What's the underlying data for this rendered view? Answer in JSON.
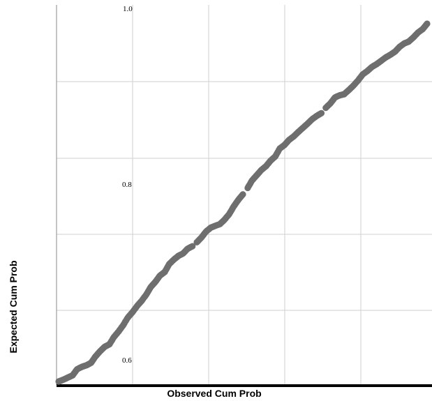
{
  "chart_data": {
    "type": "scatter",
    "title": "",
    "xlabel": "Observed Cum Prob",
    "ylabel": "Expected Cum Prob",
    "y_tick_labels": [
      "1.0",
      "0.8",
      "0.6"
    ],
    "grid": true,
    "legend": "none",
    "marker_color": "#6e6e6e",
    "series": [
      {
        "points": [
          [
            0.0,
            0.0
          ],
          [
            0.013,
            0.005
          ],
          [
            0.025,
            0.011
          ],
          [
            0.038,
            0.017
          ],
          [
            0.05,
            0.034
          ],
          [
            0.063,
            0.041
          ],
          [
            0.075,
            0.045
          ],
          [
            0.088,
            0.052
          ],
          [
            0.1,
            0.07
          ],
          [
            0.113,
            0.085
          ],
          [
            0.125,
            0.097
          ],
          [
            0.138,
            0.104
          ],
          [
            0.15,
            0.124
          ],
          [
            0.163,
            0.14
          ],
          [
            0.175,
            0.157
          ],
          [
            0.188,
            0.179
          ],
          [
            0.2,
            0.193
          ],
          [
            0.213,
            0.211
          ],
          [
            0.225,
            0.225
          ],
          [
            0.238,
            0.243
          ],
          [
            0.25,
            0.264
          ],
          [
            0.263,
            0.279
          ],
          [
            0.275,
            0.296
          ],
          [
            0.288,
            0.306
          ],
          [
            0.3,
            0.328
          ],
          [
            0.313,
            0.341
          ],
          [
            0.325,
            0.351
          ],
          [
            0.338,
            0.358
          ],
          [
            0.35,
            0.371
          ],
          [
            0.363,
            0.378
          ],
          [
            0.375,
            0.389
          ],
          [
            0.388,
            0.403
          ],
          [
            0.4,
            0.419
          ],
          [
            0.413,
            0.43
          ],
          [
            0.425,
            0.435
          ],
          [
            0.438,
            0.44
          ],
          [
            0.45,
            0.452
          ],
          [
            0.463,
            0.468
          ],
          [
            0.475,
            0.489
          ],
          [
            0.488,
            0.508
          ],
          [
            0.5,
            0.523
          ],
          [
            0.513,
            0.541
          ],
          [
            0.525,
            0.562
          ],
          [
            0.538,
            0.577
          ],
          [
            0.55,
            0.591
          ],
          [
            0.563,
            0.602
          ],
          [
            0.575,
            0.617
          ],
          [
            0.588,
            0.629
          ],
          [
            0.6,
            0.651
          ],
          [
            0.613,
            0.661
          ],
          [
            0.625,
            0.675
          ],
          [
            0.638,
            0.685
          ],
          [
            0.65,
            0.697
          ],
          [
            0.663,
            0.709
          ],
          [
            0.675,
            0.72
          ],
          [
            0.688,
            0.733
          ],
          [
            0.7,
            0.742
          ],
          [
            0.713,
            0.75
          ],
          [
            0.725,
            0.765
          ],
          [
            0.738,
            0.778
          ],
          [
            0.75,
            0.794
          ],
          [
            0.763,
            0.8
          ],
          [
            0.775,
            0.803
          ],
          [
            0.788,
            0.815
          ],
          [
            0.8,
            0.827
          ],
          [
            0.813,
            0.842
          ],
          [
            0.825,
            0.858
          ],
          [
            0.838,
            0.868
          ],
          [
            0.85,
            0.879
          ],
          [
            0.863,
            0.887
          ],
          [
            0.875,
            0.896
          ],
          [
            0.888,
            0.906
          ],
          [
            0.9,
            0.913
          ],
          [
            0.913,
            0.922
          ],
          [
            0.925,
            0.935
          ],
          [
            0.938,
            0.945
          ],
          [
            0.95,
            0.95
          ],
          [
            0.963,
            0.962
          ],
          [
            0.975,
            0.975
          ],
          [
            0.988,
            0.985
          ],
          [
            1.0,
            1.0
          ]
        ]
      }
    ]
  }
}
